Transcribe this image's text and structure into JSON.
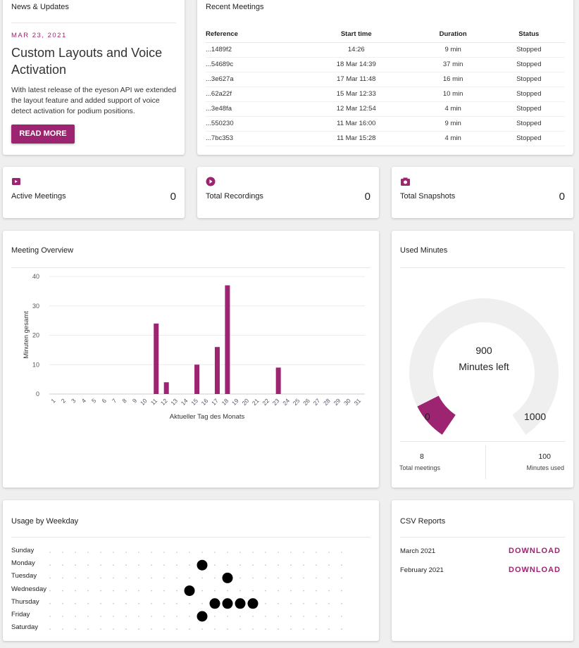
{
  "colors": {
    "accent": "#9c2470",
    "bg": "#efefef"
  },
  "news": {
    "title": "News & Updates",
    "date": "MAR 23, 2021",
    "headline": "Custom Layouts and Voice Activation",
    "body": "With latest release of the eyeson API we extended the layout feature and added support of voice detect activation for podium positions.",
    "button": "READ MORE"
  },
  "meetings": {
    "title": "Recent Meetings",
    "headers": [
      "Reference",
      "Start time",
      "Duration",
      "Status"
    ],
    "rows": [
      [
        "...1489f2",
        "14:26",
        "9 min",
        "Stopped"
      ],
      [
        "...54689c",
        "18 Mar 14:39",
        "37 min",
        "Stopped"
      ],
      [
        "...3e627a",
        "17 Mar 11:48",
        "16 min",
        "Stopped"
      ],
      [
        "...62a22f",
        "15 Mar 12:33",
        "10 min",
        "Stopped"
      ],
      [
        "...3e48fa",
        "12 Mar 12:54",
        "4 min",
        "Stopped"
      ],
      [
        "...550230",
        "11 Mar 16:00",
        "9 min",
        "Stopped"
      ],
      [
        "...7bc353",
        "11 Mar 15:28",
        "4 min",
        "Stopped"
      ]
    ]
  },
  "stats": [
    {
      "label": "Active Meetings",
      "value": "0",
      "icon": "video-icon"
    },
    {
      "label": "Total Recordings",
      "value": "0",
      "icon": "play-icon"
    },
    {
      "label": "Total Snapshots",
      "value": "0",
      "icon": "camera-icon"
    }
  ],
  "chart_data": {
    "type": "bar",
    "title": "Meeting Overview",
    "xlabel": "Aktueller Tag des Monats",
    "ylabel": "Minuten gesamt",
    "ylim": [
      0,
      40
    ],
    "yticks": [
      0,
      10,
      20,
      30,
      40
    ],
    "grid": true,
    "categories": [
      "1",
      "2",
      "3",
      "4",
      "5",
      "6",
      "7",
      "8",
      "9",
      "10",
      "11",
      "12",
      "13",
      "14",
      "15",
      "16",
      "17",
      "18",
      "19",
      "20",
      "21",
      "22",
      "23",
      "24",
      "25",
      "26",
      "27",
      "28",
      "29",
      "30",
      "31"
    ],
    "values": [
      0,
      0,
      0,
      0,
      0,
      0,
      0,
      0,
      0,
      0,
      24,
      4,
      0,
      0,
      10,
      0,
      16,
      37,
      0,
      0,
      0,
      0,
      9,
      0,
      0,
      0,
      0,
      0,
      0,
      0,
      0
    ]
  },
  "used": {
    "title": "Used Minutes",
    "left_value": "900",
    "left_label": "Minutes left",
    "min": "0",
    "max": "1000",
    "used_fraction": 0.1,
    "total_meetings": "8",
    "total_meetings_label": "Total meetings",
    "minutes_used": "100",
    "minutes_used_label": "Minutes used"
  },
  "weekday": {
    "title": "Usage by Weekday",
    "days": [
      "Sunday",
      "Monday",
      "Tuesday",
      "Wednesday",
      "Thursday",
      "Friday",
      "Saturday"
    ],
    "hours": 24,
    "points": [
      [
        1,
        12
      ],
      [
        2,
        14
      ],
      [
        3,
        11
      ],
      [
        4,
        13
      ],
      [
        4,
        14
      ],
      [
        4,
        15
      ],
      [
        4,
        16
      ],
      [
        5,
        12
      ]
    ]
  },
  "csv": {
    "title": "CSV Reports",
    "items": [
      {
        "label": "March 2021",
        "action": "DOWNLOAD"
      },
      {
        "label": "February 2021",
        "action": "DOWNLOAD"
      }
    ]
  }
}
